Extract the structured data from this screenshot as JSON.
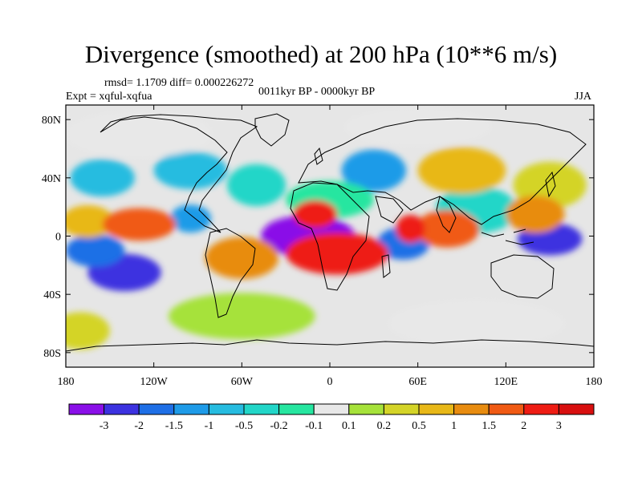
{
  "title": "Divergence (smoothed) at 200 hPa (10**6 m/s)",
  "stats": "rmsd= 1.1709 diff= 0.000226272",
  "experiment": "Expt = xqful-xqfua",
  "period": "0011kyr BP - 0000kyr BP",
  "season": "JJA",
  "map": {
    "lon_ticks": [
      "180",
      "120W",
      "60W",
      "0",
      "60E",
      "120E",
      "180"
    ],
    "lat_ticks": [
      "80N",
      "40N",
      "0",
      "40S",
      "80S"
    ],
    "lon_values": [
      -180,
      -120,
      -60,
      0,
      60,
      120,
      180
    ],
    "lat_values": [
      80,
      40,
      0,
      -40,
      -80
    ],
    "lat_range": [
      -90,
      90
    ],
    "lon_range": [
      -180,
      180
    ],
    "field_patches": [
      {
        "lon": -15,
        "lat": 0,
        "rx": 32,
        "ry": 9,
        "level": 0
      },
      {
        "lon": -25,
        "lat": 3,
        "rx": 20,
        "ry": 6,
        "level": 0
      },
      {
        "lon": 150,
        "lat": -2,
        "rx": 22,
        "ry": 7,
        "level": 1
      },
      {
        "lon": -140,
        "lat": -25,
        "rx": 25,
        "ry": 8,
        "level": 1
      },
      {
        "lon": 50,
        "lat": -5,
        "rx": 18,
        "ry": 7,
        "level": 2
      },
      {
        "lon": -160,
        "lat": -10,
        "rx": 20,
        "ry": 7,
        "level": 2
      },
      {
        "lon": -95,
        "lat": 12,
        "rx": 14,
        "ry": 6,
        "level": 3
      },
      {
        "lon": 30,
        "lat": 45,
        "rx": 22,
        "ry": 9,
        "level": 3
      },
      {
        "lon": -95,
        "lat": 45,
        "rx": 25,
        "ry": 8,
        "level": 4
      },
      {
        "lon": -155,
        "lat": 40,
        "rx": 22,
        "ry": 8,
        "level": 4
      },
      {
        "lon": 100,
        "lat": 18,
        "rx": 28,
        "ry": 10,
        "level": 5
      },
      {
        "lon": -50,
        "lat": 35,
        "rx": 20,
        "ry": 9,
        "level": 5
      },
      {
        "lon": 0,
        "lat": 25,
        "rx": 30,
        "ry": 8,
        "level": 6
      },
      {
        "lon": -130,
        "lat": 70,
        "rx": 50,
        "ry": 10,
        "level": 7
      },
      {
        "lon": 60,
        "lat": 75,
        "rx": 50,
        "ry": 8,
        "level": 7
      },
      {
        "lon": 100,
        "lat": -60,
        "rx": 60,
        "ry": 10,
        "level": 7
      },
      {
        "lon": -60,
        "lat": -55,
        "rx": 50,
        "ry": 10,
        "level": 8
      },
      {
        "lon": 150,
        "lat": 35,
        "rx": 25,
        "ry": 10,
        "level": 9
      },
      {
        "lon": -170,
        "lat": -65,
        "rx": 20,
        "ry": 8,
        "level": 9
      },
      {
        "lon": -165,
        "lat": 10,
        "rx": 18,
        "ry": 7,
        "level": 10
      },
      {
        "lon": 90,
        "lat": 45,
        "rx": 30,
        "ry": 10,
        "level": 10
      },
      {
        "lon": -60,
        "lat": -15,
        "rx": 25,
        "ry": 9,
        "level": 11
      },
      {
        "lon": 140,
        "lat": 15,
        "rx": 20,
        "ry": 8,
        "level": 11
      },
      {
        "lon": -130,
        "lat": 8,
        "rx": 25,
        "ry": 7,
        "level": 12
      },
      {
        "lon": 80,
        "lat": 5,
        "rx": 22,
        "ry": 8,
        "level": 12
      },
      {
        "lon": 5,
        "lat": -12,
        "rx": 35,
        "ry": 9,
        "level": 13
      },
      {
        "lon": -10,
        "lat": 15,
        "rx": 15,
        "ry": 6,
        "level": 13
      },
      {
        "lon": 55,
        "lat": 5,
        "rx": 10,
        "ry": 6,
        "level": 13
      }
    ]
  },
  "colorbar": {
    "labels": [
      "-3",
      "-2",
      "-1.5",
      "-1",
      "-0.5",
      "-0.2",
      "-0.1",
      "0.1",
      "0.2",
      "0.5",
      "1",
      "1.5",
      "2",
      "3"
    ],
    "colors": [
      "#8a10e8",
      "#3c32e0",
      "#1e6fe6",
      "#1e9be8",
      "#26bce0",
      "#22d6c8",
      "#26e6a0",
      "#e8e8e8",
      "#a6e23a",
      "#d4d428",
      "#e8b818",
      "#e88c10",
      "#f05a14",
      "#ee1c14",
      "#d80f0f"
    ]
  }
}
